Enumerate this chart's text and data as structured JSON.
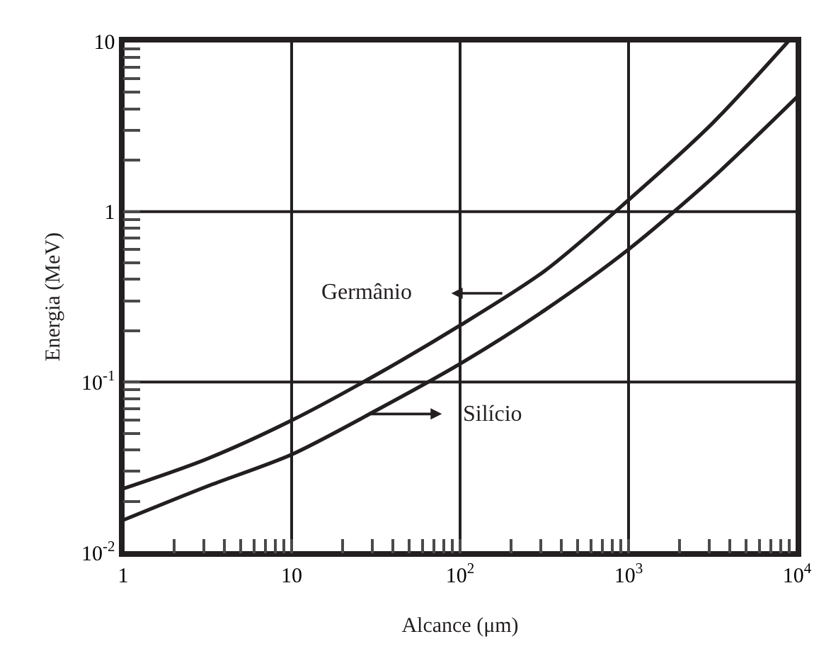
{
  "chart_data": {
    "type": "line",
    "xlabel": "Alcance (μm)",
    "ylabel": "Energia (MeV)",
    "log": "xy",
    "grid": true,
    "marker": "none",
    "line_style": "solid",
    "xlim": [
      1,
      10000
    ],
    "ylim": [
      0.01,
      10
    ],
    "xticks": [
      1,
      10,
      {
        "value": 100,
        "label": "10$^{2}$"
      },
      {
        "value": 1000,
        "label": "10$^{3}$"
      },
      {
        "value": 10000,
        "label": "10$^{4}$"
      },
      {
        "value": 2,
        "label": null
      },
      {
        "value": 3,
        "label": null
      },
      {
        "value": 4,
        "label": null
      },
      {
        "value": 5,
        "label": null
      },
      {
        "value": 6,
        "label": null
      },
      {
        "value": 7,
        "label": null
      },
      {
        "value": 8,
        "label": null
      },
      {
        "value": 9,
        "label": null
      },
      {
        "value": 20,
        "label": null
      },
      {
        "value": 30,
        "label": null
      },
      {
        "value": 40,
        "label": null
      },
      {
        "value": 50,
        "label": null
      },
      {
        "value": 60,
        "label": null
      },
      {
        "value": 70,
        "label": null
      },
      {
        "value": 80,
        "label": null
      },
      {
        "value": 90,
        "label": null
      },
      {
        "value": 200,
        "label": null
      },
      {
        "value": 300,
        "label": null
      },
      {
        "value": 400,
        "label": null
      },
      {
        "value": 500,
        "label": null
      },
      {
        "value": 600,
        "label": null
      },
      {
        "value": 700,
        "label": null
      },
      {
        "value": 800,
        "label": null
      },
      {
        "value": 900,
        "label": null
      },
      {
        "value": 2000,
        "label": null
      },
      {
        "value": 3000,
        "label": null
      },
      {
        "value": 4000,
        "label": null
      },
      {
        "value": 5000,
        "label": null
      },
      {
        "value": 6000,
        "label": null
      },
      {
        "value": 7000,
        "label": null
      },
      {
        "value": 8000,
        "label": null
      },
      {
        "value": 9000,
        "label": null
      }
    ],
    "yticks": [
      {
        "value": 0.01,
        "label": "10$^{-2}$"
      },
      {
        "value": 0.1,
        "label": "10$^{-1}$"
      },
      1,
      10,
      {
        "value": 0.02,
        "label": null
      },
      {
        "value": 0.03,
        "label": null
      },
      {
        "value": 0.04,
        "label": null
      },
      {
        "value": 0.05,
        "label": null
      },
      {
        "value": 0.06,
        "label": null
      },
      {
        "value": 0.07,
        "label": null
      },
      {
        "value": 0.08,
        "label": null
      },
      {
        "value": 0.09,
        "label": null
      },
      {
        "value": 0.2,
        "label": null
      },
      {
        "value": 0.3,
        "label": null
      },
      {
        "value": 0.4,
        "label": null
      },
      {
        "value": 0.5,
        "label": null
      },
      {
        "value": 0.6,
        "label": null
      },
      {
        "value": 0.7,
        "label": null
      },
      {
        "value": 0.8,
        "label": null
      },
      {
        "value": 0.9,
        "label": null
      },
      {
        "value": 2,
        "label": null
      },
      {
        "value": 3,
        "label": null
      },
      {
        "value": 4,
        "label": null
      },
      {
        "value": 5,
        "label": null
      },
      {
        "value": 6,
        "label": null
      },
      {
        "value": 7,
        "label": null
      },
      {
        "value": 8,
        "label": null
      },
      {
        "value": 9,
        "label": null
      }
    ],
    "series": [
      {
        "color": "#231f20",
        "x": [
          1,
          3.16,
          10,
          31.6,
          100,
          316,
          1000,
          3160,
          8900
        ],
        "values": [
          0.0237,
          0.0355,
          0.0596,
          0.11,
          0.215,
          0.447,
          1.17,
          3.31,
          10
        ]
      },
      {
        "color": "#231f20",
        "x": [
          1,
          3.16,
          10,
          31.6,
          100,
          316,
          1000,
          3160,
          10000
        ],
        "values": [
          0.0155,
          0.0245,
          0.0376,
          0.068,
          0.128,
          0.263,
          0.6,
          1.58,
          4.7
        ]
      }
    ],
    "annotations": [
      "Germânio",
      "Silício"
    ]
  }
}
